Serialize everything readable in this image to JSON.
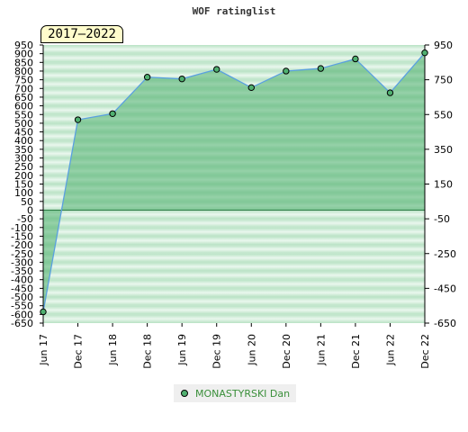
{
  "chart_data": {
    "type": "area",
    "title": "WOF ratinglist",
    "badge": "2017–2022",
    "categories": [
      "Jun 17",
      "Dec 17",
      "Jun 18",
      "Dec 18",
      "Jun 19",
      "Dec 19",
      "Jun 20",
      "Dec 20",
      "Jun 21",
      "Dec 21",
      "Jun 22",
      "Dec 22"
    ],
    "series": [
      {
        "name": "MONASTYRSKI Dan",
        "values": [
          -585,
          520,
          555,
          765,
          755,
          810,
          705,
          800,
          815,
          870,
          675,
          905
        ],
        "color": "#50b070"
      }
    ],
    "y_left": {
      "min": -650,
      "max": 950,
      "ticks": [
        950,
        900,
        850,
        800,
        750,
        700,
        650,
        600,
        550,
        500,
        450,
        400,
        350,
        300,
        250,
        200,
        150,
        100,
        50,
        0,
        -50,
        -100,
        -150,
        -200,
        -250,
        -300,
        -350,
        -400,
        -450,
        -500,
        -550,
        -600,
        -650
      ]
    },
    "y_right": {
      "min": -650,
      "max": 950,
      "ticks": [
        950,
        750,
        550,
        350,
        150,
        -50,
        -250,
        -450,
        -650
      ]
    },
    "grid": true,
    "legend_position": "bottom"
  }
}
